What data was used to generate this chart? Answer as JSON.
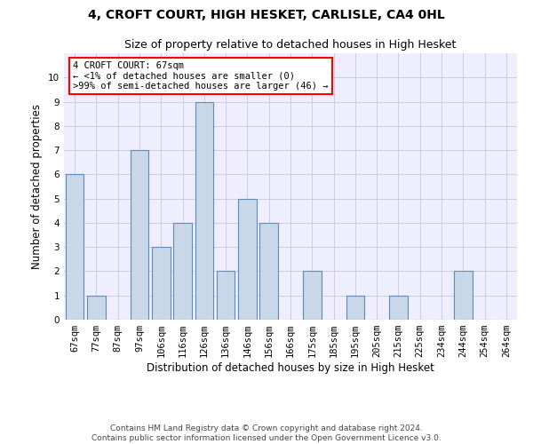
{
  "title": "4, CROFT COURT, HIGH HESKET, CARLISLE, CA4 0HL",
  "subtitle": "Size of property relative to detached houses in High Hesket",
  "xlabel": "Distribution of detached houses by size in High Hesket",
  "ylabel": "Number of detached properties",
  "categories": [
    "67sqm",
    "77sqm",
    "87sqm",
    "97sqm",
    "106sqm",
    "116sqm",
    "126sqm",
    "136sqm",
    "146sqm",
    "156sqm",
    "166sqm",
    "175sqm",
    "185sqm",
    "195sqm",
    "205sqm",
    "215sqm",
    "225sqm",
    "234sqm",
    "244sqm",
    "254sqm",
    "264sqm"
  ],
  "values": [
    6,
    1,
    0,
    7,
    3,
    4,
    9,
    2,
    5,
    4,
    0,
    2,
    0,
    1,
    0,
    1,
    0,
    0,
    2,
    0,
    0
  ],
  "bar_color": "#c8d8e8",
  "bar_edge_color": "#5b8db8",
  "annotation_text": "4 CROFT COURT: 67sqm\n← <1% of detached houses are smaller (0)\n>99% of semi-detached houses are larger (46) →",
  "annotation_box_color": "white",
  "annotation_box_edge_color": "red",
  "ylim": [
    0,
    11
  ],
  "yticks": [
    0,
    1,
    2,
    3,
    4,
    5,
    6,
    7,
    8,
    9,
    10
  ],
  "grid_color": "#ccccdd",
  "background_color": "#eeeeff",
  "footer_line1": "Contains HM Land Registry data © Crown copyright and database right 2024.",
  "footer_line2": "Contains public sector information licensed under the Open Government Licence v3.0.",
  "title_fontsize": 10,
  "subtitle_fontsize": 9,
  "xlabel_fontsize": 8.5,
  "ylabel_fontsize": 8.5,
  "tick_fontsize": 7.5,
  "footer_fontsize": 6.5
}
